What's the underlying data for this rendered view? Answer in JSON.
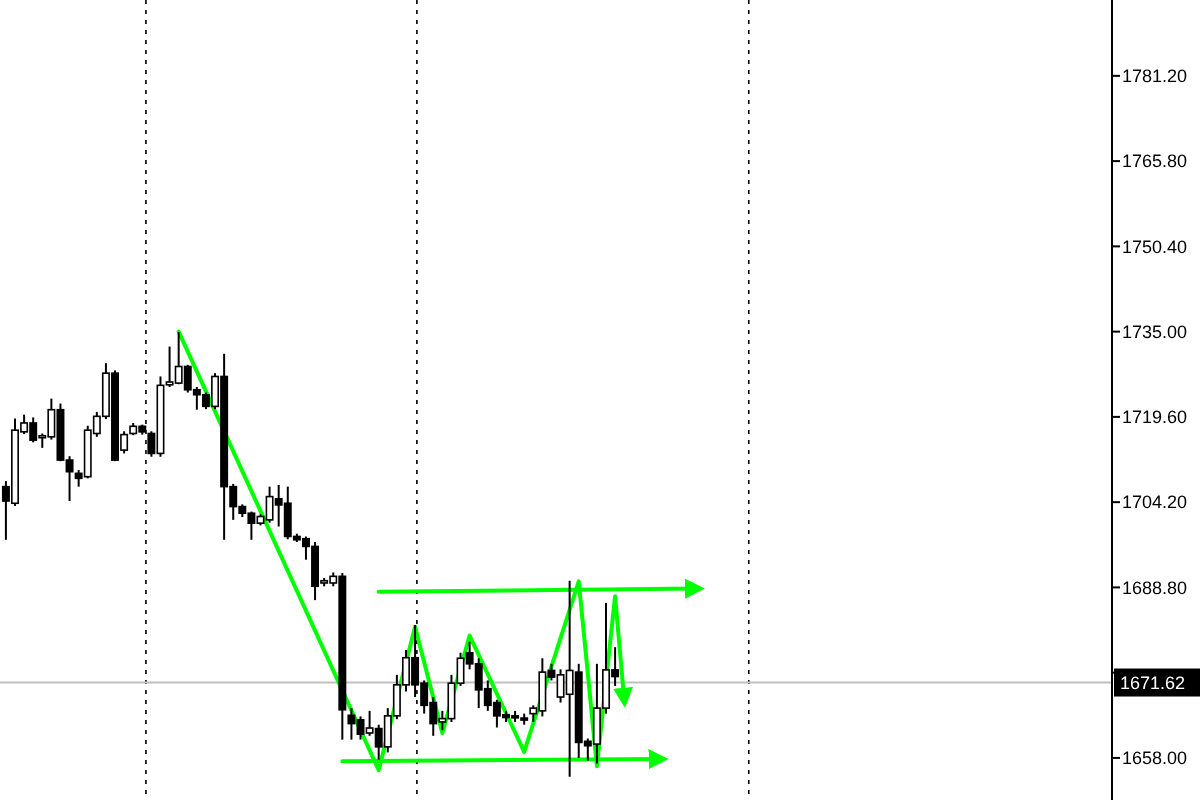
{
  "chart_data": {
    "type": "candlestick",
    "categories": [
      null,
      null,
      null,
      null,
      null,
      null,
      null,
      null,
      null,
      null,
      null,
      null,
      null,
      null,
      null,
      null,
      null,
      null,
      null,
      null,
      null,
      null,
      null,
      null,
      null,
      null,
      null,
      null,
      null,
      null,
      null,
      null,
      null,
      null,
      null,
      null,
      null,
      null,
      null,
      null,
      null,
      null,
      null,
      null,
      null,
      null,
      null,
      null,
      null,
      null,
      null,
      null,
      null,
      null,
      null,
      null,
      null,
      null,
      null,
      null,
      null,
      null,
      null,
      null,
      null,
      null,
      null,
      null,
      null,
      null,
      null,
      null,
      null,
      null,
      null,
      null,
      null,
      null,
      null,
      null,
      null,
      null,
      null,
      null,
      null,
      null,
      null,
      null,
      null,
      null,
      null,
      null,
      null,
      null,
      null,
      null,
      null,
      null,
      null,
      null,
      null,
      null,
      null,
      null,
      null,
      null,
      null,
      null,
      null,
      null,
      null,
      null,
      null,
      null,
      null,
      null,
      null,
      null,
      null,
      null,
      null,
      null
    ],
    "ohlc": [
      [
        1707.0,
        1708,
        1697.4,
        1704.4
      ],
      [
        1704.0,
        1719.3,
        1703.5,
        1717.2
      ],
      [
        1716.9,
        1720,
        1716.5,
        1718.5
      ],
      [
        1718.5,
        1719.5,
        1715,
        1715.4
      ],
      [
        1716.0,
        1716.6,
        1714.0,
        1716.2
      ],
      [
        1716.0,
        1722.9,
        1715.5,
        1720.9
      ],
      [
        1720.9,
        1722,
        1711.6,
        1711.8
      ],
      [
        1711.8,
        1712.5,
        1704.4,
        1709.7
      ],
      [
        1709.4,
        1710,
        1707,
        1708.5
      ],
      [
        1708.8,
        1718,
        1708.5,
        1717.2
      ],
      [
        1716.6,
        1720.5,
        1716,
        1719.7
      ],
      [
        1719.7,
        1729.3,
        1719.2,
        1727.5
      ],
      [
        1727.5,
        1728,
        1711.6,
        1711.8
      ],
      [
        1713.6,
        1717,
        1713,
        1716.4
      ],
      [
        1716.6,
        1718.5,
        1716.3,
        1717.9
      ],
      [
        1717.9,
        1718.2,
        1716.4,
        1716.9
      ],
      [
        1716.6,
        1717,
        1712.4,
        1713.0
      ],
      [
        1713.0,
        1726.9,
        1712.4,
        1725.3
      ],
      [
        1725.4,
        1732.3,
        1725,
        1725.9
      ],
      [
        1725.7,
        1734.9,
        1725.5,
        1728.7
      ],
      [
        1728.7,
        1729,
        1724,
        1724.5
      ],
      [
        1724.5,
        1725,
        1720.9,
        1723.6
      ],
      [
        1723.6,
        1724,
        1721,
        1721.5
      ],
      [
        1721.5,
        1727.5,
        1721,
        1726.9
      ],
      [
        1726.9,
        1731,
        1697.4,
        1707.0
      ],
      [
        1707.0,
        1707.5,
        1701,
        1703.4
      ],
      [
        1703.4,
        1703.8,
        1701.5,
        1702.2
      ],
      [
        1702.2,
        1702.5,
        1697.4,
        1700.4
      ],
      [
        1700.4,
        1702,
        1700,
        1701.6
      ],
      [
        1701.0,
        1707.0,
        1700.5,
        1705.2
      ],
      [
        1704.8,
        1707.3,
        1699.8,
        1703.7
      ],
      [
        1704.0,
        1707,
        1697.5,
        1698.0
      ],
      [
        1698.0,
        1698.5,
        1697,
        1697.4
      ],
      [
        1697.6,
        1698,
        1693.8,
        1696.2
      ],
      [
        1696.2,
        1697,
        1686.5,
        1689.0
      ],
      [
        1689.6,
        1690.5,
        1689,
        1690.0
      ],
      [
        1689.6,
        1691.5,
        1689,
        1690.8
      ],
      [
        1690.8,
        1691.4,
        1661.3,
        1666.7
      ],
      [
        1665.7,
        1667,
        1661.3,
        1664.2
      ],
      [
        1664.9,
        1665.5,
        1661.3,
        1662.3
      ],
      [
        1662.5,
        1666.5,
        1662,
        1663.4
      ],
      [
        1663.3,
        1664,
        1657.7,
        1660.0
      ],
      [
        1660.0,
        1667,
        1659,
        1665.6
      ],
      [
        1665.6,
        1673,
        1665,
        1671.2
      ],
      [
        1671.2,
        1677.5,
        1670,
        1676.1
      ],
      [
        1676.1,
        1682,
        1669,
        1671.2
      ],
      [
        1671.5,
        1672,
        1666,
        1667.5
      ],
      [
        1668,
        1669,
        1662,
        1664.2
      ],
      [
        1664.5,
        1666.5,
        1663,
        1665.1
      ],
      [
        1665.1,
        1673,
        1664.5,
        1671.5
      ],
      [
        1671.5,
        1677,
        1671,
        1676.0
      ],
      [
        1677,
        1679,
        1674,
        1675
      ],
      [
        1675,
        1676,
        1667,
        1670.3
      ],
      [
        1670.5,
        1672,
        1666.5,
        1667.5
      ],
      [
        1668,
        1668.5,
        1663.5,
        1665.6
      ],
      [
        1665.8,
        1666.5,
        1664.5,
        1665.3
      ],
      [
        1665.6,
        1666.5,
        1664.5,
        1665.3
      ],
      [
        1665.2,
        1666,
        1664,
        1665.0
      ],
      [
        1666,
        1667.5,
        1664.5,
        1667
      ],
      [
        1666.5,
        1676,
        1665.5,
        1673.5
      ],
      [
        1673.8,
        1675,
        1672,
        1672.6
      ],
      [
        1669,
        1674,
        1668,
        1673.0
      ],
      [
        1669.5,
        1690,
        1654.6,
        1673.8
      ],
      [
        1673.5,
        1675,
        1658,
        1660.8
      ],
      [
        1661,
        1661.5,
        1657.5,
        1660.2
      ],
      [
        1660.5,
        1675,
        1657,
        1667
      ],
      [
        1667,
        1686,
        1666,
        1673.9
      ],
      [
        1673.9,
        1678,
        1671,
        1672.7
      ],
      null,
      null,
      null,
      null,
      null,
      null,
      null,
      null,
      null,
      null,
      null,
      null,
      null,
      null,
      null,
      null,
      null,
      null,
      null,
      null,
      null,
      null,
      null,
      null,
      null,
      null,
      null,
      null,
      null,
      null,
      null,
      null,
      null,
      null,
      null,
      null,
      null,
      null,
      null,
      null,
      null,
      null,
      null,
      null,
      null,
      null,
      null,
      null,
      null,
      null,
      null,
      null,
      null,
      null
    ],
    "series": [
      {
        "type": "line",
        "color": "#00ff00",
        "values": [
          null,
          null,
          null,
          null,
          null,
          null,
          null,
          null,
          null,
          null,
          null,
          null,
          null,
          null,
          null,
          null,
          null,
          null,
          null,
          1735,
          null,
          null,
          null,
          null,
          null,
          null,
          null,
          null,
          null,
          null,
          null,
          null,
          null,
          null,
          null,
          null,
          null,
          null,
          null,
          null,
          null,
          1655.8,
          null,
          null,
          null,
          1681.7,
          null,
          null,
          1662.5,
          null,
          null,
          1680.1,
          null,
          null,
          null,
          null,
          null,
          1659.1,
          null,
          null,
          null,
          null,
          null,
          1689.9,
          null,
          1656.5,
          null,
          1687.2,
          1668.5,
          null,
          null,
          null,
          null,
          null,
          null,
          null,
          null,
          null,
          null,
          null,
          null,
          null,
          null,
          null,
          null,
          null,
          null,
          null,
          null,
          null,
          null,
          null,
          null,
          null,
          null,
          null,
          null,
          null,
          null,
          null,
          null,
          null,
          null,
          null,
          null,
          null,
          null,
          null,
          null,
          null,
          null,
          null,
          null,
          null,
          null,
          null,
          null,
          null,
          null,
          null,
          null,
          null
        ]
      },
      {
        "type": "line",
        "color": "#00ff00",
        "values": [
          null,
          null,
          null,
          null,
          null,
          null,
          null,
          null,
          null,
          null,
          null,
          null,
          null,
          null,
          null,
          null,
          null,
          null,
          null,
          null,
          null,
          null,
          null,
          null,
          null,
          null,
          null,
          null,
          null,
          null,
          null,
          null,
          null,
          null,
          null,
          null,
          null,
          null,
          null,
          null,
          null,
          1688.0,
          null,
          null,
          null,
          null,
          null,
          null,
          null,
          null,
          null,
          null,
          null,
          null,
          null,
          null,
          null,
          null,
          null,
          null,
          null,
          null,
          null,
          null,
          null,
          null,
          null,
          null,
          null,
          null,
          null,
          null,
          null,
          null,
          null,
          null,
          1688.6,
          null,
          null,
          null,
          null,
          null,
          null,
          null,
          null,
          null,
          null,
          null,
          null,
          null,
          null,
          null,
          null,
          null,
          null,
          null,
          null,
          null,
          null,
          null,
          null,
          null,
          null,
          null,
          null,
          null,
          null,
          null,
          null,
          null,
          null,
          null,
          null,
          null,
          null,
          null,
          null,
          null,
          null,
          null,
          null,
          null
        ]
      },
      {
        "type": "line",
        "color": "#00ff00",
        "values": [
          null,
          null,
          null,
          null,
          null,
          null,
          null,
          null,
          null,
          null,
          null,
          null,
          null,
          null,
          null,
          null,
          null,
          null,
          null,
          null,
          null,
          null,
          null,
          null,
          null,
          null,
          null,
          null,
          null,
          null,
          null,
          null,
          null,
          null,
          null,
          null,
          null,
          1657.4,
          null,
          null,
          null,
          null,
          null,
          null,
          null,
          null,
          null,
          null,
          null,
          null,
          null,
          null,
          null,
          null,
          null,
          null,
          null,
          null,
          null,
          null,
          null,
          null,
          null,
          null,
          null,
          null,
          null,
          null,
          null,
          null,
          null,
          null,
          1657.8,
          null,
          null,
          null,
          null,
          null,
          null,
          null,
          null,
          null,
          null,
          null,
          null,
          null,
          null,
          null,
          null,
          null,
          null,
          null,
          null,
          null,
          null,
          null,
          null,
          null,
          null,
          null,
          null,
          null,
          null,
          null,
          null,
          null,
          null,
          null,
          null,
          null,
          null,
          null,
          null,
          null,
          null,
          null,
          null,
          null,
          null,
          null,
          null,
          null
        ]
      }
    ],
    "ylim": [
      1650.4,
      1794.9
    ],
    "yticks": [
      {
        "value": 1658,
        "label": "1658.00"
      },
      {
        "value": 1673.4,
        "label": null
      },
      {
        "value": 1688.8,
        "label": "1688.80"
      },
      {
        "value": 1704.2,
        "label": "1704.20"
      },
      {
        "value": 1719.6,
        "label": "1719.60"
      },
      {
        "value": 1735,
        "label": "1735.00"
      },
      {
        "value": 1750.4,
        "label": "1750.40"
      },
      {
        "value": 1765.8,
        "label": "1765.80"
      },
      {
        "value": 1781.2,
        "label": "1781.20"
      }
    ],
    "ref_lines": [
      {
        "axis": "y",
        "value": 1671.62,
        "label": "1671.62",
        "color": "#c0c0c0"
      }
    ],
    "grid": false
  }
}
